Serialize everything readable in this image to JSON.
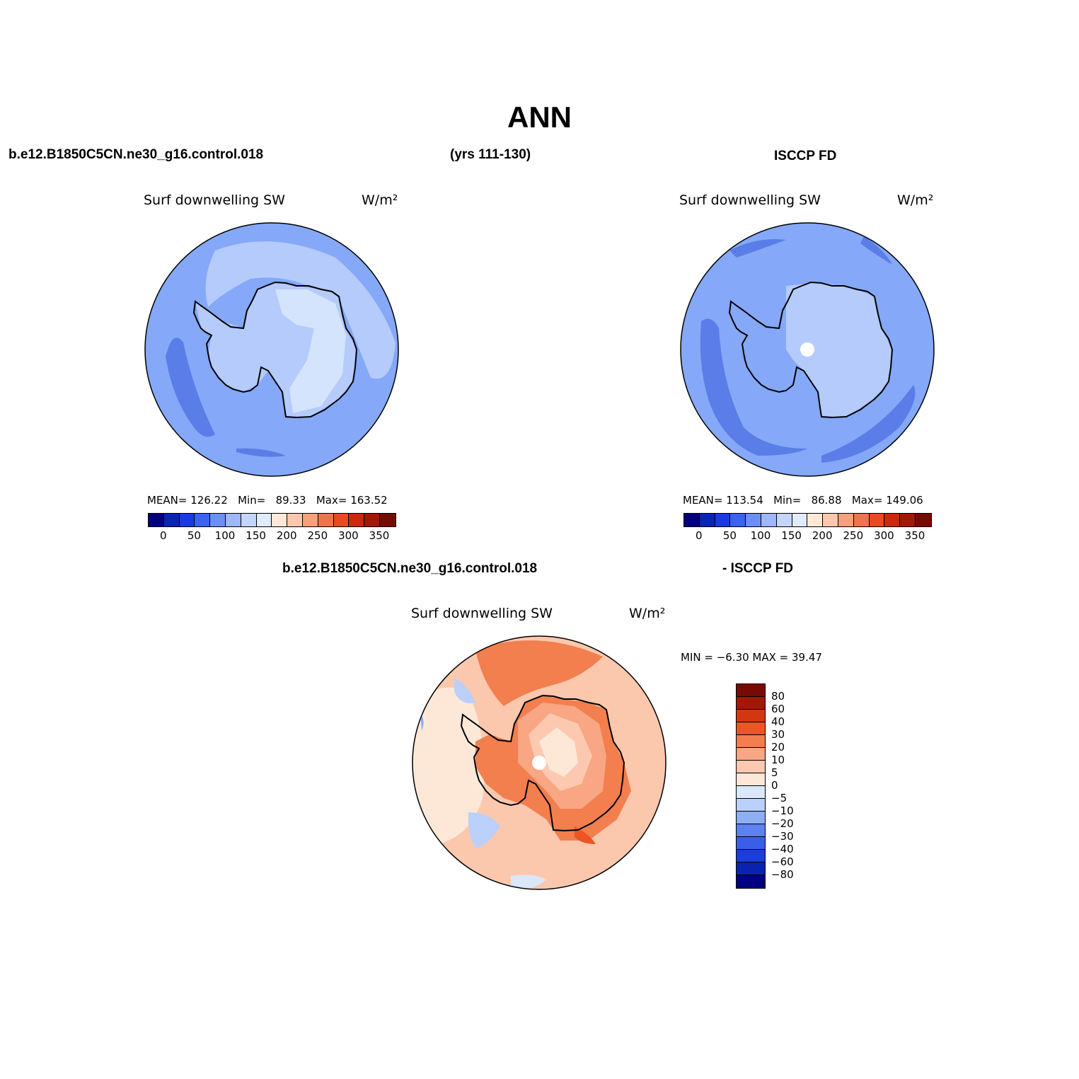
{
  "title": "ANN",
  "header": {
    "case_name": "b.e12.B1850C5CN.ne30_g16.control.018",
    "years": "(yrs 111-130)",
    "obs_name": "ISCCP FD"
  },
  "panels": {
    "model": {
      "variable": "Surf downwelling SW",
      "units": "W/m²",
      "mean_label": "MEAN=",
      "mean": "126.22",
      "min_label": "Min=",
      "min": "89.33",
      "max_label": "Max=",
      "max": "163.52"
    },
    "obs": {
      "variable": "Surf downwelling SW",
      "units": "W/m²",
      "mean_label": "MEAN=",
      "mean": "113.54",
      "min_label": "Min=",
      "min": "86.88",
      "max_label": "Max=",
      "max": "149.06"
    },
    "diff": {
      "header_left": "b.e12.B1850C5CN.ne30_g16.control.018",
      "header_right": "- ISCCP FD",
      "variable": "Surf downwelling SW",
      "units": "W/m²",
      "minmax_text": "MIN =  −6.30 MAX =  39.47"
    }
  },
  "colorbar_abs": {
    "colors": [
      "#000080",
      "#0a24b4",
      "#1a3be0",
      "#3a63f0",
      "#6b8ff5",
      "#9eb6fa",
      "#c4d5fb",
      "#e0ebfd",
      "#fde9d6",
      "#fbc8ae",
      "#f7a07c",
      "#f0744a",
      "#e64c20",
      "#c82a0a",
      "#a01806",
      "#780a04"
    ],
    "tick_labels": [
      "0",
      "50",
      "100",
      "150",
      "200",
      "250",
      "300",
      "350"
    ]
  },
  "colorbar_diff": {
    "colors": [
      "#780a04",
      "#a01806",
      "#d23810",
      "#ef5424",
      "#f37e4e",
      "#f8a683",
      "#fcc9b0",
      "#fde8d8",
      "#dbe7fb",
      "#bbd0fa",
      "#8eaef6",
      "#5b82ee",
      "#3a5fe6",
      "#1a3fd6",
      "#0a22b0",
      "#000080"
    ],
    "tick_labels": [
      "80",
      "60",
      "40",
      "30",
      "20",
      "10",
      "5",
      "0",
      "−5",
      "−10",
      "−20",
      "−30",
      "−40",
      "−60",
      "−80"
    ]
  },
  "colors": {
    "land_outline": "#000000"
  }
}
